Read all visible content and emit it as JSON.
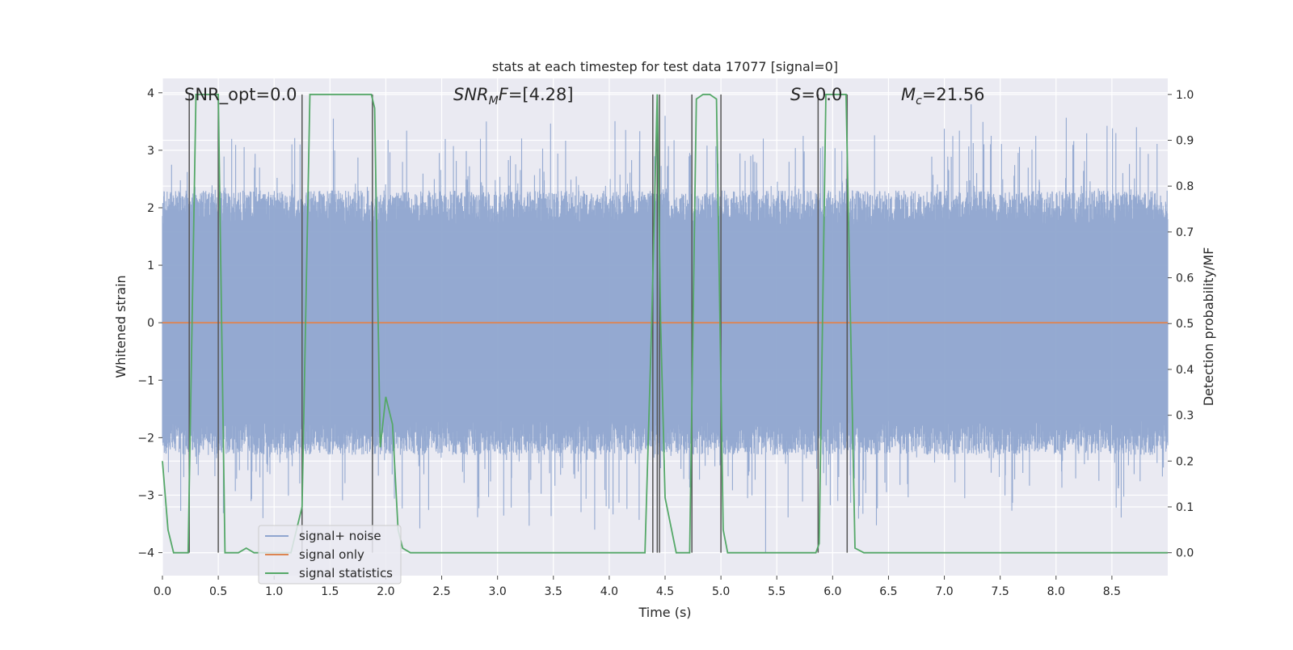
{
  "chart_data": {
    "type": "line",
    "title": "stats at each timestep for test data 17077 [signal=0]",
    "xlabel": "Time (s)",
    "ylabel_left": "Whitened strain",
    "ylabel_right": "Detection probability/MF",
    "xlim": [
      0.0,
      9.0
    ],
    "ylim_left": [
      -4.4,
      4.25
    ],
    "ylim_right": [
      -0.05,
      1.035
    ],
    "x_ticks": [
      0.0,
      0.5,
      1.0,
      1.5,
      2.0,
      2.5,
      3.0,
      3.5,
      4.0,
      4.5,
      5.0,
      5.5,
      6.0,
      6.5,
      7.0,
      7.5,
      8.0,
      8.5
    ],
    "x_tick_labels": [
      "0.0",
      "0.5",
      "1.0",
      "1.5",
      "2.0",
      "2.5",
      "3.0",
      "3.5",
      "4.0",
      "4.5",
      "5.0",
      "5.5",
      "6.0",
      "6.5",
      "7.0",
      "7.5",
      "8.0",
      "8.5"
    ],
    "y_left_ticks": [
      -4,
      -3,
      -2,
      -1,
      0,
      1,
      2,
      3,
      4
    ],
    "y_left_tick_labels": [
      "−4",
      "−3",
      "−2",
      "−1",
      "0",
      "1",
      "2",
      "3",
      "4"
    ],
    "y_right_ticks": [
      0.0,
      0.1,
      0.2,
      0.3,
      0.4,
      0.5,
      0.6,
      0.7,
      0.8,
      0.9,
      1.0
    ],
    "y_right_tick_labels": [
      "0.0",
      "0.1",
      "0.2",
      "0.3",
      "0.4",
      "0.5",
      "0.6",
      "0.7",
      "0.8",
      "0.9",
      "1.0"
    ],
    "grid": true,
    "annotations": {
      "snr_opt": "SNR_opt=0.0",
      "snr_mf_base": "SNR",
      "snr_mf_sub": "M",
      "snr_mf_rest": "F=[4.28]",
      "s_italic": "S",
      "s_rest": "=0.0",
      "mc_base": "M",
      "mc_sub": "c",
      "mc_rest": "=21.56"
    },
    "legend": {
      "placement": "lower-left",
      "entries": [
        {
          "label": "signal+ noise",
          "color": "#8fa5cf"
        },
        {
          "label": "signal only",
          "color": "#dd8452"
        },
        {
          "label": "signal statistics",
          "color": "#55a868"
        }
      ]
    },
    "series": [
      {
        "name": "signal+ noise",
        "axis": "left",
        "color": "#8fa5cf",
        "kind": "dense noise",
        "approx_range": [
          -4.0,
          4.0
        ],
        "typical_range": [
          -2.3,
          2.3
        ],
        "sample_peaks": [
          {
            "x": 0.62,
            "y": 3.2
          },
          {
            "x": 0.9,
            "y": -3.4
          },
          {
            "x": 1.53,
            "y": 3.55
          },
          {
            "x": 2.9,
            "y": 3.5
          },
          {
            "x": 3.87,
            "y": -3.6
          },
          {
            "x": 4.5,
            "y": 3.6
          },
          {
            "x": 5.4,
            "y": -4.0
          },
          {
            "x": 5.86,
            "y": 1.6
          },
          {
            "x": 7.24,
            "y": 3.8
          },
          {
            "x": 8.72,
            "y": 3.4
          }
        ]
      },
      {
        "name": "signal only",
        "axis": "left",
        "color": "#dd8452",
        "x": [
          0.0,
          9.0
        ],
        "y": [
          0.0,
          0.0
        ]
      },
      {
        "name": "signal statistics",
        "axis": "right",
        "color": "#55a868",
        "x": [
          0.0,
          0.05,
          0.1,
          0.23,
          0.3,
          0.5,
          0.56,
          0.68,
          0.75,
          0.82,
          1.0,
          1.15,
          1.2,
          1.25,
          1.32,
          1.87,
          1.9,
          1.95,
          2.0,
          2.06,
          2.11,
          2.15,
          2.22,
          2.3,
          4.32,
          4.38,
          4.43,
          4.46,
          4.5,
          4.6,
          4.72,
          4.78,
          4.84,
          4.9,
          4.96,
          5.02,
          5.06,
          5.85,
          5.88,
          5.94,
          6.12,
          6.2,
          6.28,
          6.4,
          6.5,
          9.0
        ],
        "y": [
          0.2,
          0.05,
          0.0,
          0.0,
          1.0,
          1.0,
          0.0,
          0.0,
          0.01,
          0.0,
          0.0,
          0.0,
          0.05,
          0.1,
          1.0,
          1.0,
          0.97,
          0.23,
          0.34,
          0.28,
          0.05,
          0.01,
          0.0,
          0.0,
          0.0,
          0.5,
          1.0,
          0.5,
          0.12,
          0.0,
          0.0,
          0.99,
          1.0,
          1.0,
          0.99,
          0.05,
          0.0,
          0.0,
          0.02,
          1.0,
          1.0,
          0.01,
          0.0,
          0.0,
          0.0,
          0.0
        ]
      }
    ],
    "detection_markers": {
      "color": "#555555",
      "x": [
        0.24,
        0.5,
        1.25,
        1.88,
        4.39,
        4.43,
        4.45,
        4.74,
        5.0,
        5.87,
        6.13
      ]
    }
  }
}
